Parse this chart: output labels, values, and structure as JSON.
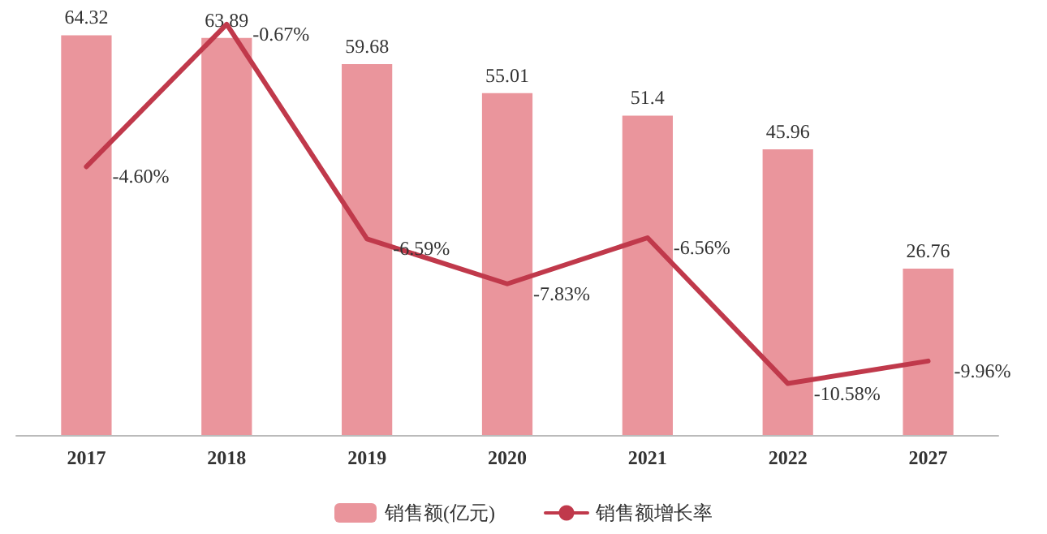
{
  "chart_data": {
    "type": "bar",
    "categories": [
      "2017",
      "2018",
      "2019",
      "2020",
      "2021",
      "2022",
      "2027"
    ],
    "series": [
      {
        "name": "销售额(亿元)",
        "color": "#ea959c",
        "values": [
          64.32,
          63.89,
          59.68,
          55.01,
          51.4,
          45.96,
          26.76
        ],
        "value_labels": [
          "64.32",
          "63.89",
          "59.68",
          "55.01",
          "51.4",
          "45.96",
          "26.76"
        ]
      },
      {
        "name": "销售额增长率",
        "type": "line",
        "axis": "y2",
        "color": "#c0394b",
        "values": [
          -4.6,
          -0.67,
          -6.59,
          -7.83,
          -6.56,
          -10.58,
          -9.96
        ],
        "value_labels": [
          "-4.60%",
          "-0.67%",
          "-6.59%",
          "-7.83%",
          "-6.56%",
          "-10.58%",
          "-9.96%"
        ]
      }
    ],
    "tick_labels": "x",
    "grid": false,
    "legend": "bottom",
    "marker": "none",
    "line_style": "solid"
  }
}
